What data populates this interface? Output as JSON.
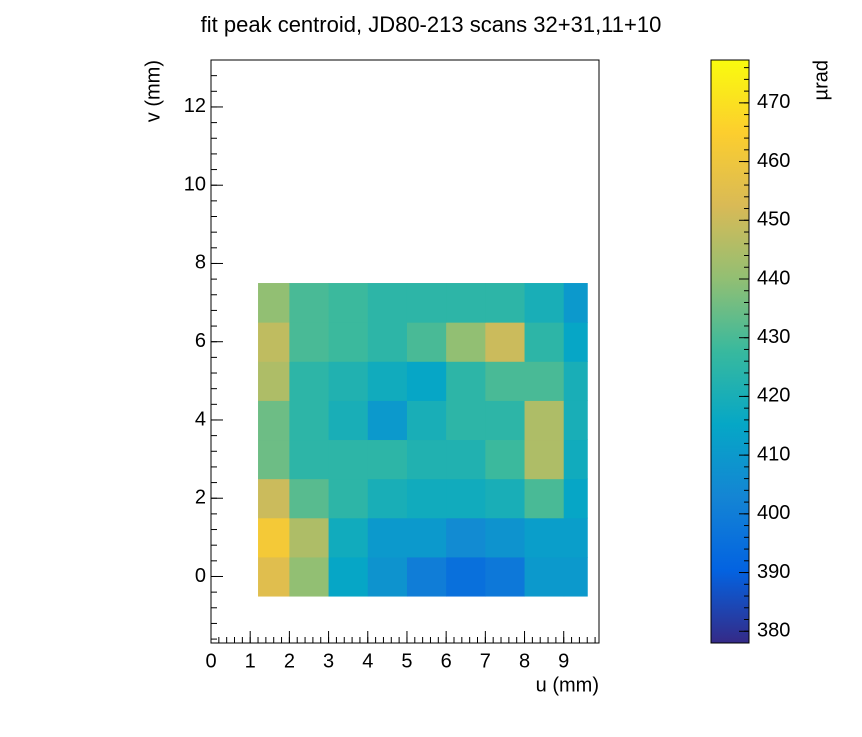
{
  "chart_data": {
    "type": "heatmap",
    "title": "fit peak centroid, JD80-213 scans 32+31,11+10",
    "x_label": "u (mm)",
    "y_label": "v (mm)",
    "z_label": "µrad",
    "xlim": [
      0,
      9.9
    ],
    "xticks": [
      0,
      1,
      2,
      3,
      4,
      5,
      6,
      7,
      8,
      9
    ],
    "ylim": [
      -1.7,
      13.2
    ],
    "yticks": [
      0,
      2,
      4,
      6,
      8,
      10,
      12
    ],
    "zlim": [
      378,
      477.3
    ],
    "zticks": [
      380,
      390,
      400,
      410,
      420,
      430,
      440,
      450,
      460,
      470
    ],
    "xbins": [
      1.2,
      2,
      3,
      4,
      5,
      6,
      7,
      8,
      9,
      9.6
    ],
    "ybins": [
      -0.5,
      0.5,
      1.5,
      2.5,
      3.5,
      4.5,
      5.5,
      6.5,
      7.5
    ],
    "z": [
      [
        455,
        440,
        415,
        408,
        400,
        395,
        398,
        410,
        410
      ],
      [
        462,
        445,
        418,
        410,
        410,
        405,
        408,
        412,
        412
      ],
      [
        450,
        432,
        425,
        420,
        418,
        418,
        420,
        430,
        415
      ],
      [
        435,
        425,
        425,
        425,
        422,
        422,
        428,
        445,
        418
      ],
      [
        435,
        425,
        420,
        410,
        420,
        425,
        425,
        445,
        420
      ],
      [
        445,
        425,
        422,
        418,
        415,
        425,
        430,
        430,
        420
      ],
      [
        448,
        430,
        428,
        425,
        430,
        440,
        450,
        425,
        415
      ],
      [
        440,
        430,
        428,
        425,
        425,
        425,
        425,
        420,
        410
      ]
    ],
    "colorscale": [
      "#352a87",
      "#0363e1",
      "#1485d4",
      "#06a7c6",
      "#38b99e",
      "#92bf73",
      "#d9ba56",
      "#fcce2e",
      "#f9fb0e"
    ]
  }
}
